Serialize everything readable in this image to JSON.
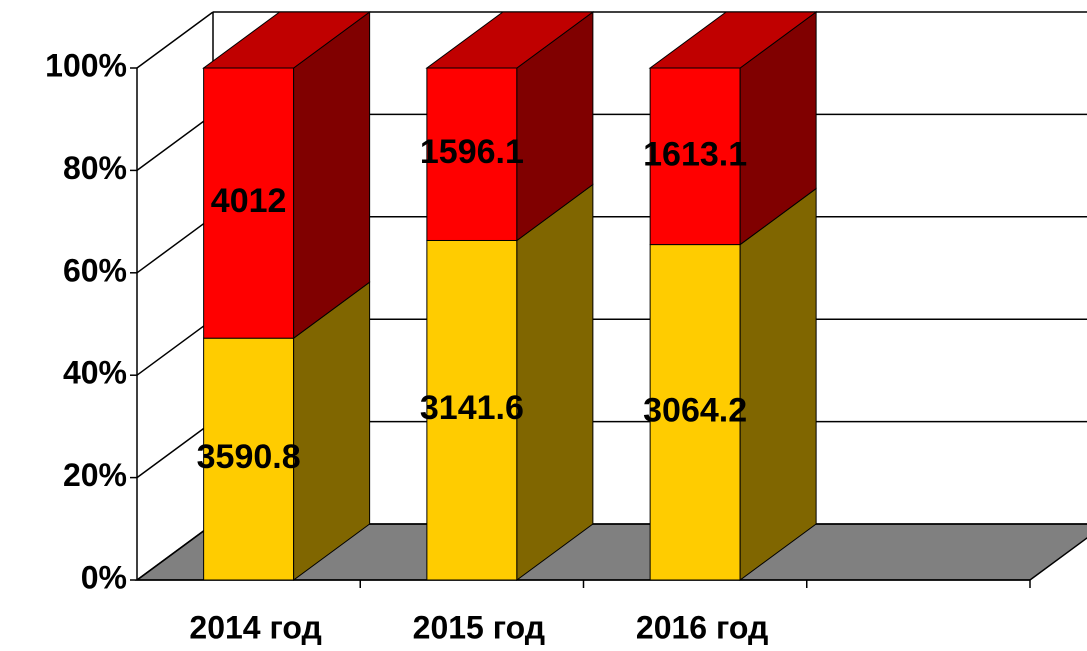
{
  "chart_data": {
    "type": "bar",
    "stacked": "percent",
    "categories": [
      "2014 год",
      "2015 год",
      "2016 год"
    ],
    "series": [
      {
        "color": "#ffcc00",
        "side_color": "#806600",
        "values": [
          3590.8,
          3141.6,
          3064.2
        ]
      },
      {
        "color": "#ff0000",
        "side_color": "#800000",
        "top_color": "#c00000",
        "values": [
          4012,
          1596.1,
          1613.1
        ]
      }
    ],
    "ylim": [
      0,
      100
    ],
    "yticks": [
      {
        "value": 0,
        "label": "0%"
      },
      {
        "value": 20,
        "label": "20%"
      },
      {
        "value": 40,
        "label": "40%"
      },
      {
        "value": 60,
        "label": "60%"
      },
      {
        "value": 80,
        "label": "80%"
      },
      {
        "value": 100,
        "label": "100%"
      }
    ],
    "grid": true,
    "floor_color": "#808080"
  }
}
